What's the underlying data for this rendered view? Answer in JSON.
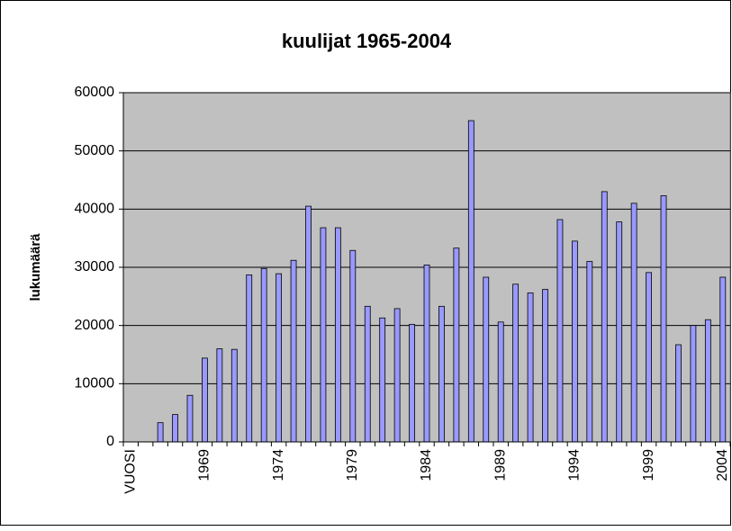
{
  "chart_data": {
    "type": "bar",
    "title": "kuulijat 1965-2004",
    "y_label": "lukumäärä",
    "categories": [
      "VUOSI",
      null,
      null,
      null,
      null,
      "1969",
      null,
      null,
      null,
      null,
      "1974",
      null,
      null,
      null,
      null,
      "1979",
      null,
      null,
      null,
      null,
      "1984",
      null,
      null,
      null,
      null,
      "1989",
      null,
      null,
      null,
      null,
      "1994",
      null,
      null,
      null,
      null,
      "1999",
      null,
      null,
      null,
      null,
      "2004"
    ],
    "values": [
      null,
      null,
      3300,
      4700,
      8000,
      14400,
      16000,
      15900,
      28700,
      29800,
      28900,
      31200,
      40500,
      36800,
      36800,
      32900,
      23300,
      21300,
      22900,
      20200,
      30400,
      23300,
      33300,
      55200,
      28300,
      20600,
      27100,
      25600,
      26200,
      38200,
      34500,
      31000,
      43000,
      37800,
      41000,
      29100,
      42300,
      16700,
      20000,
      21000,
      28300
    ],
    "color": "#9999ff",
    "ylim": [
      0,
      60000
    ],
    "yticks": [
      0,
      10000,
      20000,
      30000,
      40000,
      50000,
      60000
    ],
    "grid": true
  }
}
